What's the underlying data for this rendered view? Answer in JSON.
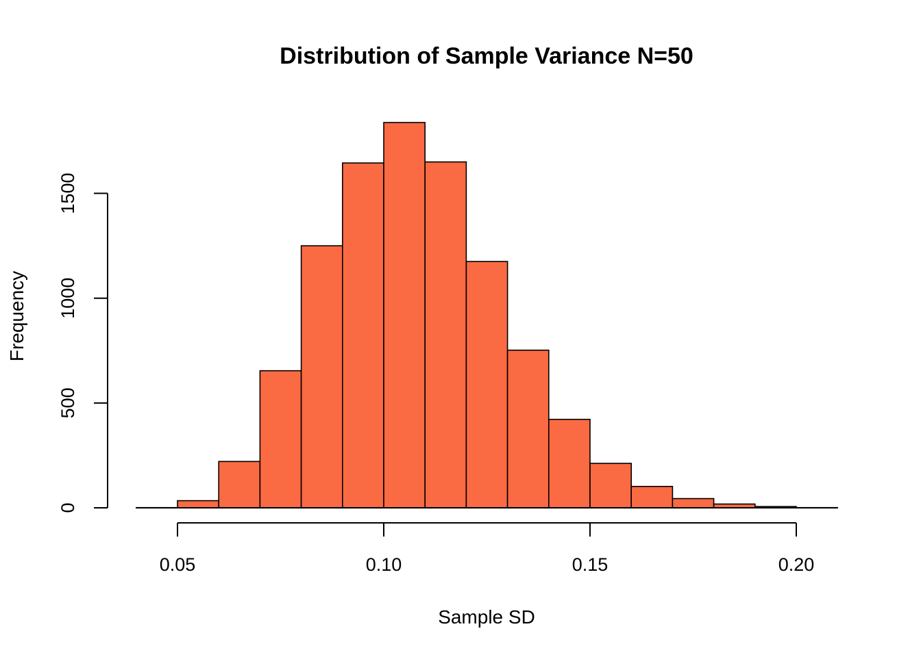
{
  "chart_data": {
    "type": "bar",
    "title": "Distribution of Sample Variance N=50",
    "xlabel": "Sample SD",
    "ylabel": "Frequency",
    "bar_color": "#FA6A43",
    "bins": [
      {
        "x0": 0.04,
        "x1": 0.05,
        "count": 1
      },
      {
        "x0": 0.05,
        "x1": 0.06,
        "count": 34
      },
      {
        "x0": 0.06,
        "x1": 0.07,
        "count": 221
      },
      {
        "x0": 0.07,
        "x1": 0.08,
        "count": 654
      },
      {
        "x0": 0.08,
        "x1": 0.09,
        "count": 1250
      },
      {
        "x0": 0.09,
        "x1": 0.1,
        "count": 1645
      },
      {
        "x0": 0.1,
        "x1": 0.11,
        "count": 1838
      },
      {
        "x0": 0.11,
        "x1": 0.12,
        "count": 1650
      },
      {
        "x0": 0.12,
        "x1": 0.13,
        "count": 1175
      },
      {
        "x0": 0.13,
        "x1": 0.14,
        "count": 752
      },
      {
        "x0": 0.14,
        "x1": 0.15,
        "count": 422
      },
      {
        "x0": 0.15,
        "x1": 0.16,
        "count": 212
      },
      {
        "x0": 0.16,
        "x1": 0.17,
        "count": 102
      },
      {
        "x0": 0.17,
        "x1": 0.18,
        "count": 44
      },
      {
        "x0": 0.18,
        "x1": 0.19,
        "count": 18
      },
      {
        "x0": 0.19,
        "x1": 0.2,
        "count": 6
      },
      {
        "x0": 0.2,
        "x1": 0.21,
        "count": 1
      }
    ],
    "x_ticks": [
      {
        "value": 0.05,
        "label": "0.05"
      },
      {
        "value": 0.1,
        "label": "0.10"
      },
      {
        "value": 0.15,
        "label": "0.15"
      },
      {
        "value": 0.2,
        "label": "0.20"
      }
    ],
    "y_ticks": [
      {
        "value": 0,
        "label": "0"
      },
      {
        "value": 500,
        "label": "500"
      },
      {
        "value": 1000,
        "label": "1000"
      },
      {
        "value": 1500,
        "label": "1500"
      }
    ],
    "xlim": [
      0.04,
      0.21
    ],
    "ylim": [
      0,
      1838
    ],
    "grid": false,
    "legend": "none"
  }
}
